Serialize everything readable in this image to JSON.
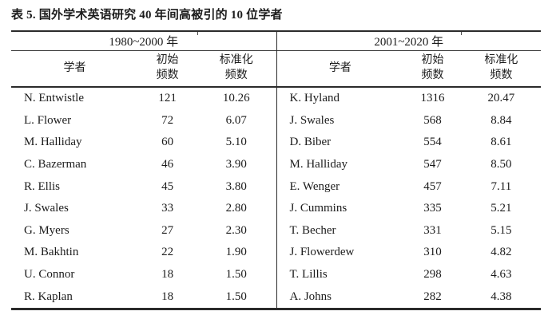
{
  "caption": "表 5. 国外学术英语研究 40 年间高被引的 10 位学者",
  "table": {
    "groups": [
      {
        "period": "1980~2000 年",
        "headers": {
          "scholar": "学者",
          "initial": "初始\n频数",
          "normalized": "标准化\n频数"
        },
        "rows": [
          {
            "scholar": "N. Entwistle",
            "initial": "121",
            "normalized": "10.26"
          },
          {
            "scholar": "L. Flower",
            "initial": "72",
            "normalized": "6.07"
          },
          {
            "scholar": "M. Halliday",
            "initial": "60",
            "normalized": "5.10"
          },
          {
            "scholar": "C. Bazerman",
            "initial": "46",
            "normalized": "3.90"
          },
          {
            "scholar": "R. Ellis",
            "initial": "45",
            "normalized": "3.80"
          },
          {
            "scholar": "J. Swales",
            "initial": "33",
            "normalized": "2.80"
          },
          {
            "scholar": "G. Myers",
            "initial": "27",
            "normalized": "2.30"
          },
          {
            "scholar": "M. Bakhtin",
            "initial": "22",
            "normalized": "1.90"
          },
          {
            "scholar": "U. Connor",
            "initial": "18",
            "normalized": "1.50"
          },
          {
            "scholar": "R. Kaplan",
            "initial": "18",
            "normalized": "1.50"
          }
        ]
      },
      {
        "period": "2001~2020 年",
        "headers": {
          "scholar": "学者",
          "initial": "初始\n频数",
          "normalized": "标准化\n频数"
        },
        "rows": [
          {
            "scholar": "K. Hyland",
            "initial": "1316",
            "normalized": "20.47"
          },
          {
            "scholar": "J. Swales",
            "initial": "568",
            "normalized": "8.84"
          },
          {
            "scholar": "D. Biber",
            "initial": "554",
            "normalized": "8.61"
          },
          {
            "scholar": "M. Halliday",
            "initial": "547",
            "normalized": "8.50"
          },
          {
            "scholar": "E. Wenger",
            "initial": "457",
            "normalized": "7.11"
          },
          {
            "scholar": "J. Cummins",
            "initial": "335",
            "normalized": "5.21"
          },
          {
            "scholar": "T. Becher",
            "initial": "331",
            "normalized": "5.15"
          },
          {
            "scholar": "J. Flowerdew",
            "initial": "310",
            "normalized": "4.82"
          },
          {
            "scholar": "T. Lillis",
            "initial": "298",
            "normalized": "4.63"
          },
          {
            "scholar": "A. Johns",
            "initial": "282",
            "normalized": "4.38"
          }
        ]
      }
    ]
  },
  "chart_data": {
    "type": "table",
    "title": "表 5. 国外学术英语研究 40 年间高被引的 10 位学者",
    "column_groups": [
      "1980~2000 年",
      "2001~2020 年"
    ],
    "columns": [
      "学者",
      "初始频数",
      "标准化频数"
    ],
    "series": [
      {
        "name": "1980~2000 年",
        "scholars": [
          "N. Entwistle",
          "L. Flower",
          "M. Halliday",
          "C. Bazerman",
          "R. Ellis",
          "J. Swales",
          "G. Myers",
          "M. Bakhtin",
          "U. Connor",
          "R. Kaplan"
        ],
        "initial_frequency": [
          121,
          72,
          60,
          46,
          45,
          33,
          27,
          22,
          18,
          18
        ],
        "normalized_frequency": [
          10.26,
          6.07,
          5.1,
          3.9,
          3.8,
          2.8,
          2.3,
          1.9,
          1.5,
          1.5
        ]
      },
      {
        "name": "2001~2020 年",
        "scholars": [
          "K. Hyland",
          "J. Swales",
          "D. Biber",
          "M. Halliday",
          "E. Wenger",
          "J. Cummins",
          "T. Becher",
          "J. Flowerdew",
          "T. Lillis",
          "A. Johns"
        ],
        "initial_frequency": [
          1316,
          568,
          554,
          547,
          457,
          335,
          331,
          310,
          298,
          282
        ],
        "normalized_frequency": [
          20.47,
          8.84,
          8.61,
          8.5,
          7.11,
          5.21,
          5.15,
          4.82,
          4.63,
          4.38
        ]
      }
    ]
  }
}
